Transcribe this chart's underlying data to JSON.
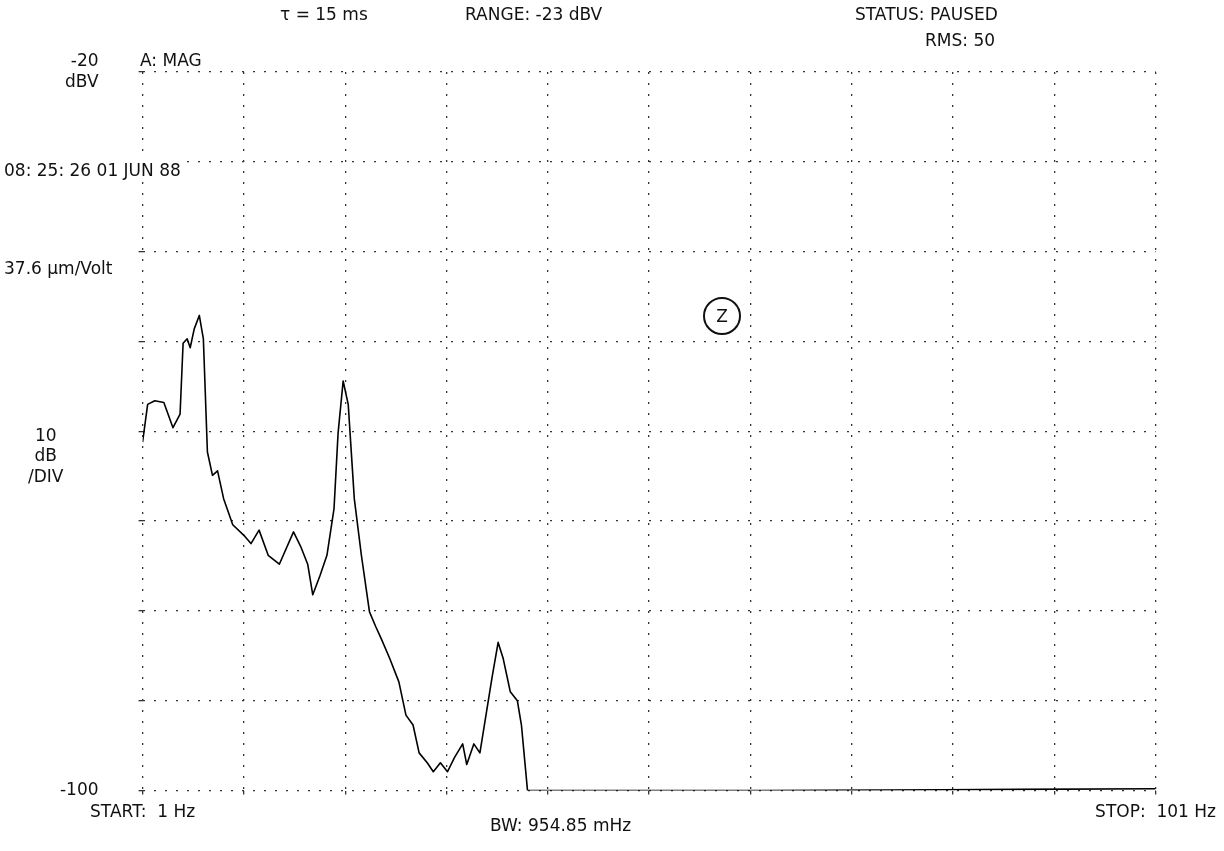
{
  "chart_data": {
    "type": "line",
    "x": [
      1,
      1.5,
      2.2,
      3.1,
      4.0,
      4.7,
      5.0,
      5.4,
      5.7,
      6.1,
      6.6,
      7.0,
      7.4,
      7.9,
      8.4,
      9.0,
      9.9,
      11.1,
      11.7,
      12.5,
      13.4,
      14.5,
      15.9,
      16.6,
      17.3,
      17.8,
      18.5,
      19.2,
      19.9,
      20.3,
      20.8,
      21.3,
      21.9,
      22.6,
      23.4,
      24.0,
      24.6,
      25.4,
      26.3,
      27.0,
      27.7,
      28.3,
      29.1,
      29.7,
      30.4,
      31.1,
      31.8,
      32.6,
      33.0,
      33.7,
      34.3,
      34.9,
      35.5,
      36.1,
      36.6,
      37.3,
      38.0,
      38.4,
      39.0,
      60,
      80,
      101
    ],
    "values": [
      -61.2,
      -57.0,
      -56.6,
      -56.8,
      -59.6,
      -58.1,
      -50.2,
      -49.7,
      -50.7,
      -48.6,
      -47.1,
      -49.7,
      -62.3,
      -64.9,
      -64.4,
      -67.5,
      -70.4,
      -71.7,
      -72.5,
      -71.0,
      -73.8,
      -74.8,
      -71.2,
      -72.8,
      -74.8,
      -78.2,
      -76.1,
      -73.8,
      -68.6,
      -60.2,
      -54.4,
      -57.0,
      -67.5,
      -73.8,
      -80.1,
      -81.7,
      -83.2,
      -85.3,
      -87.9,
      -91.6,
      -92.7,
      -95.8,
      -96.9,
      -97.9,
      -96.9,
      -97.9,
      -96.3,
      -94.8,
      -97.1,
      -94.8,
      -95.8,
      -91.6,
      -87.4,
      -83.5,
      -85.3,
      -89.0,
      -90.0,
      -92.7,
      -100,
      -100,
      -99.9,
      -99.8
    ],
    "color": "#000000",
    "xlim": [
      1,
      101
    ],
    "xticks": [
      {
        "value": 1,
        "label": "START:  1 Hz"
      },
      {
        "value": 11,
        "label": null
      },
      {
        "value": 21,
        "label": null
      },
      {
        "value": 31,
        "label": null
      },
      {
        "value": 41,
        "label": null
      },
      {
        "value": 51,
        "label": null
      },
      {
        "value": 61,
        "label": null
      },
      {
        "value": 71,
        "label": null
      },
      {
        "value": 81,
        "label": null
      },
      {
        "value": 91,
        "label": null
      },
      {
        "value": 101,
        "label": "STOP:  101 Hz"
      }
    ],
    "ylim": [
      -100,
      -20
    ],
    "yticks": [
      {
        "value": -20,
        "label": "-20\ndBV"
      },
      {
        "value": -30,
        "label": null
      },
      {
        "value": -40,
        "label": null
      },
      {
        "value": -50,
        "label": null
      },
      {
        "value": -60,
        "label": null
      },
      {
        "value": -70,
        "label": null
      },
      {
        "value": -80,
        "label": null
      },
      {
        "value": -90,
        "label": null
      },
      {
        "value": -100,
        "label": "-100"
      }
    ],
    "grid": true,
    "annotations": [
      "τ = 15 ms",
      "RANGE:  -23 dBV",
      "STATUS:  PAUSED",
      "RMS: 50",
      "A: MAG",
      "08: 25: 26   01  JUN  88",
      "37.6 μm/Volt",
      "Z",
      "10\ndB\n/DIV",
      "BW:  954.85 mHz"
    ]
  }
}
